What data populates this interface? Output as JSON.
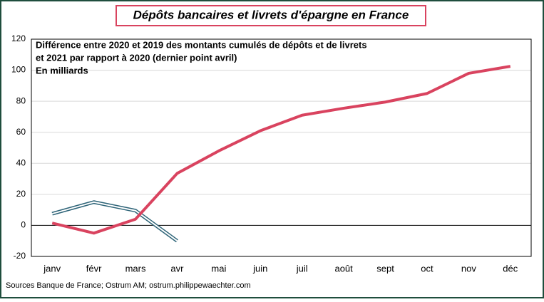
{
  "chart_data": {
    "type": "line",
    "title": "Dépôts bancaires et livrets d'épargne en France",
    "subtitle": [
      "Différence entre 2020 et 2019 des montants cumulés de dépôts et de livrets",
      "et 2021 par rapport à 2020 (dernier point avril)",
      "En milliards"
    ],
    "source": "Sources Banque de France; Ostrum AM; ostrum.philippewaechter.com",
    "categories": [
      "janv",
      "févr",
      "mars",
      "avr",
      "mai",
      "juin",
      "juil",
      "août",
      "sept",
      "oct",
      "nov",
      "déc"
    ],
    "series": [
      {
        "color": "#d9435f",
        "values": [
          1.5,
          -5,
          4,
          33.5,
          48,
          61,
          71,
          75.5,
          79.5,
          85,
          98,
          102.5
        ]
      },
      {
        "color": "#2e6478",
        "values": [
          7.5,
          15,
          9.5,
          -10,
          null,
          null,
          null,
          null,
          null,
          null,
          null,
          null
        ]
      }
    ],
    "ylim": [
      -20,
      120
    ],
    "yticks": [
      -20,
      0,
      20,
      40,
      60,
      80,
      100,
      120
    ],
    "grid": true
  }
}
